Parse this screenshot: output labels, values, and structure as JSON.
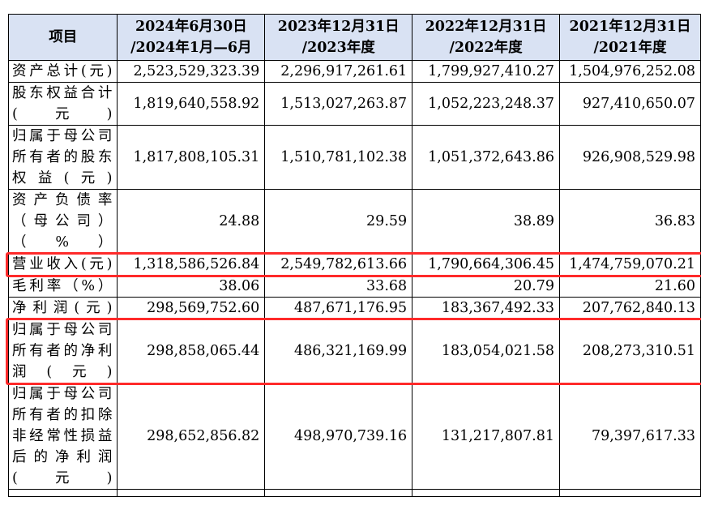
{
  "table": {
    "headers": [
      {
        "id": "item",
        "label": "项目"
      },
      {
        "id": "h2024h1",
        "line1": "2024年6月30日",
        "line2": "/2024年1月—6月"
      },
      {
        "id": "h2023",
        "line1": "2023年12月31日",
        "line2": "/2023年度"
      },
      {
        "id": "h2022",
        "line1": "2022年12月31日",
        "line2": "/2022年度"
      },
      {
        "id": "h2021",
        "line1": "2021年12月31日",
        "line2": "/2021年度"
      }
    ],
    "rows": [
      {
        "label": "资产总计(元)",
        "values": [
          "2,523,529,323.39",
          "2,296,917,261.61",
          "1,799,927,410.27",
          "1,504,976,252.08"
        ]
      },
      {
        "label": "股东权益合计(元)",
        "values": [
          "1,819,640,558.92",
          "1,513,027,263.87",
          "1,052,223,248.37",
          "927,410,650.07"
        ]
      },
      {
        "label": "归属于母公司所有者的股东权益(元)",
        "values": [
          "1,817,808,105.31",
          "1,510,781,102.38",
          "1,051,372,643.86",
          "926,908,529.98"
        ]
      },
      {
        "label": "资产负债率（母公司）（%）",
        "values": [
          "24.88",
          "29.59",
          "38.89",
          "36.83"
        ]
      },
      {
        "label": "营业收入(元)",
        "values": [
          "1,318,586,526.84",
          "2,549,782,613.66",
          "1,790,664,306.45",
          "1,474,759,070.21"
        ]
      },
      {
        "label": "毛利率（%）",
        "values": [
          "38.06",
          "33.68",
          "20.79",
          "21.60"
        ]
      },
      {
        "label": "净利润(元)",
        "values": [
          "298,569,752.60",
          "487,671,176.95",
          "183,367,492.33",
          "207,762,840.13"
        ]
      },
      {
        "label": "归属于母公司所有者的净利润(元)",
        "values": [
          "298,858,065.44",
          "486,321,169.99",
          "183,054,021.58",
          "208,273,310.51"
        ]
      },
      {
        "label": "归属于母公司所有者的扣除非经常性损益后的净利润(元)",
        "values": [
          "298,652,856.82",
          "498,970,739.16",
          "131,217,807.81",
          "79,397,617.33"
        ]
      }
    ]
  },
  "highlight_color": "#ff2a2a",
  "header_background": "#d9e2f3"
}
